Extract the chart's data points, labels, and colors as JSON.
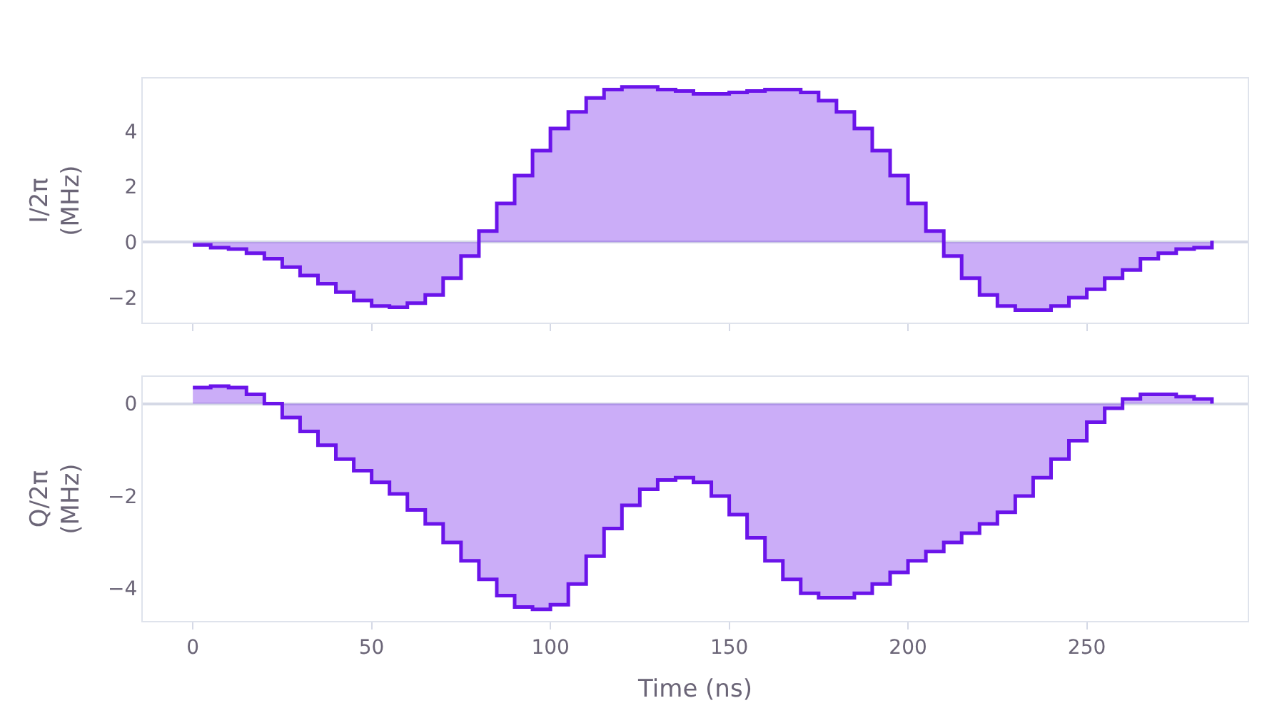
{
  "chart_data": [
    {
      "type": "step",
      "ylabel": "I/2π\n(MHz)",
      "x": [
        0,
        5,
        10,
        15,
        20,
        25,
        30,
        35,
        40,
        45,
        50,
        55,
        60,
        65,
        70,
        75,
        80,
        85,
        90,
        95,
        100,
        105,
        110,
        115,
        120,
        125,
        130,
        135,
        140,
        145,
        150,
        155,
        160,
        165,
        170,
        175,
        180,
        185,
        190,
        195,
        200,
        205,
        210,
        215,
        220,
        225,
        230,
        235,
        240,
        245,
        250,
        255,
        260,
        265,
        270,
        275,
        280,
        285
      ],
      "series": [
        {
          "color": "#6b14ea",
          "values": [
            -0.1,
            -0.2,
            -0.25,
            -0.4,
            -0.6,
            -0.9,
            -1.2,
            -1.5,
            -1.8,
            -2.1,
            -2.3,
            -2.35,
            -2.2,
            -1.9,
            -1.3,
            -0.5,
            0.4,
            1.4,
            2.4,
            3.3,
            4.1,
            4.7,
            5.2,
            5.5,
            5.6,
            5.6,
            5.5,
            5.45,
            5.35,
            5.35,
            5.4,
            5.45,
            5.5,
            5.5,
            5.4,
            5.1,
            4.7,
            4.1,
            3.3,
            2.4,
            1.4,
            0.4,
            -0.5,
            -1.3,
            -1.9,
            -2.3,
            -2.45,
            -2.45,
            -2.3,
            -2.0,
            -1.7,
            -1.3,
            -1.0,
            -0.6,
            -0.4,
            -0.25,
            -0.2,
            0.05
          ]
        }
      ],
      "xlim": [
        -14,
        295
      ],
      "xticks": [
        {
          "value": 0,
          "label": null
        },
        {
          "value": 50,
          "label": null
        },
        {
          "value": 100,
          "label": null
        },
        {
          "value": 150,
          "label": null
        },
        {
          "value": 200,
          "label": null
        },
        {
          "value": 250,
          "label": null
        }
      ],
      "ylim": [
        -2.9,
        5.9
      ],
      "yticks": [
        -2,
        0,
        2,
        4
      ],
      "tick_labels": "y"
    },
    {
      "type": "step",
      "xlabel": "Time (ns)",
      "ylabel": "Q/2π\n(MHz)",
      "x": [
        0,
        5,
        10,
        15,
        20,
        25,
        30,
        35,
        40,
        45,
        50,
        55,
        60,
        65,
        70,
        75,
        80,
        85,
        90,
        95,
        100,
        105,
        110,
        115,
        120,
        125,
        130,
        135,
        140,
        145,
        150,
        155,
        160,
        165,
        170,
        175,
        180,
        185,
        190,
        195,
        200,
        205,
        210,
        215,
        220,
        225,
        230,
        235,
        240,
        245,
        250,
        255,
        260,
        265,
        270,
        275,
        280,
        285
      ],
      "series": [
        {
          "color": "#6b14ea",
          "values": [
            0.35,
            0.38,
            0.35,
            0.2,
            0.0,
            -0.3,
            -0.6,
            -0.9,
            -1.2,
            -1.45,
            -1.7,
            -1.95,
            -2.3,
            -2.6,
            -3.0,
            -3.4,
            -3.8,
            -4.15,
            -4.4,
            -4.45,
            -4.35,
            -3.9,
            -3.3,
            -2.7,
            -2.2,
            -1.85,
            -1.65,
            -1.6,
            -1.7,
            -2.0,
            -2.4,
            -2.9,
            -3.4,
            -3.8,
            -4.1,
            -4.2,
            -4.2,
            -4.1,
            -3.9,
            -3.65,
            -3.4,
            -3.2,
            -3.0,
            -2.8,
            -2.6,
            -2.35,
            -2.0,
            -1.6,
            -1.2,
            -0.8,
            -0.4,
            -0.1,
            0.1,
            0.2,
            0.2,
            0.15,
            0.1,
            0.0
          ]
        }
      ],
      "xlim": [
        -14,
        295
      ],
      "xticks": [
        0,
        50,
        100,
        150,
        200,
        250
      ],
      "ylim": [
        -4.7,
        0.58
      ],
      "yticks": [
        -4,
        -2,
        0
      ]
    }
  ]
}
